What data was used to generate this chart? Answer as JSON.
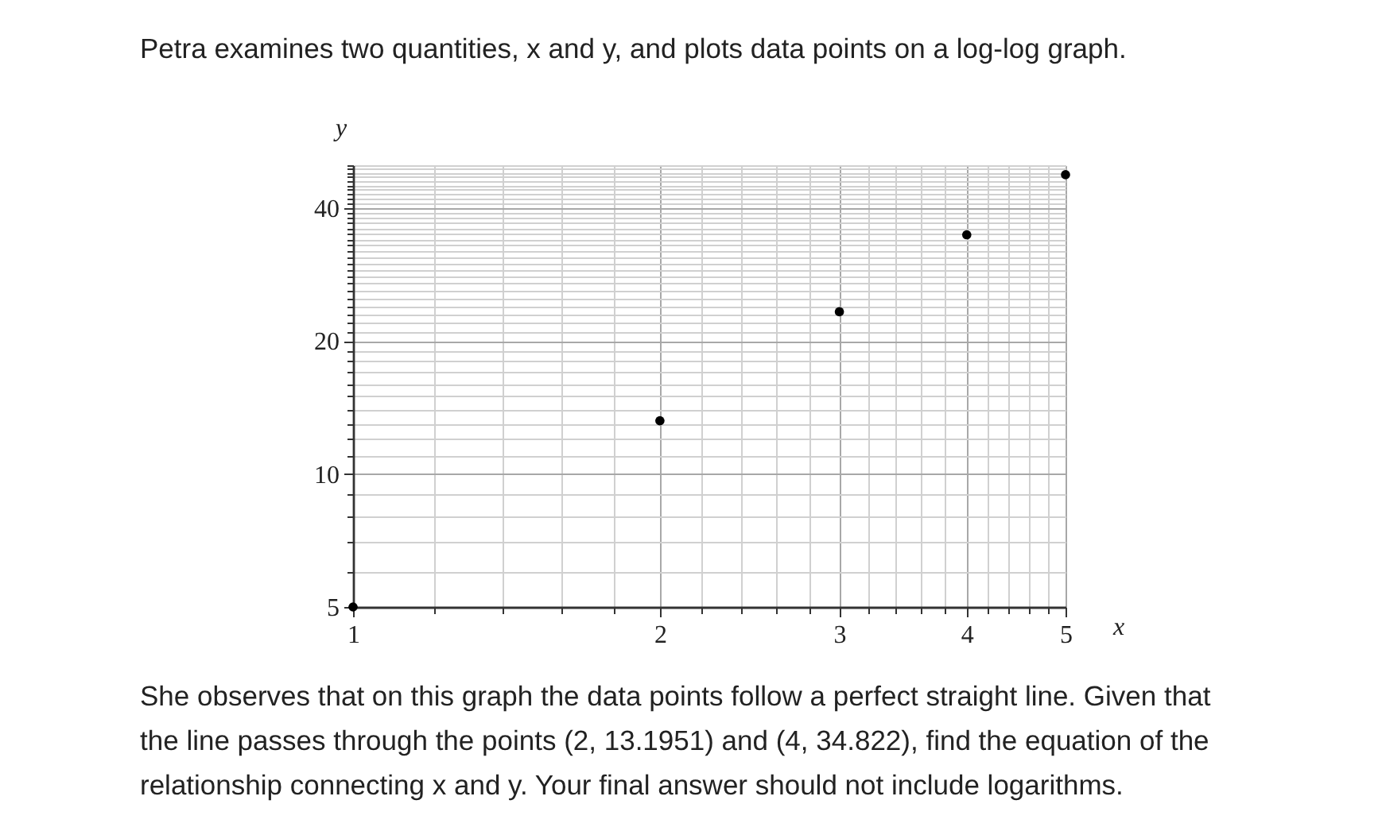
{
  "chart_data": {
    "type": "scatter",
    "title": "Petra examines two quantities, x and y, and plots data points on a log-log graph.",
    "xlabel": "x",
    "ylabel": "y",
    "x": [
      1,
      2,
      3,
      4,
      5
    ],
    "values": [
      5,
      13.2,
      23.3,
      34.8,
      47.6
    ],
    "color": "#000000",
    "marker": "circle",
    "log": "xy",
    "grid": true,
    "xlim": [
      1,
      5
    ],
    "ylim": [
      5,
      50
    ],
    "xticks": [
      1,
      {
        "value": 1.2,
        "label": null
      },
      {
        "value": 1.4,
        "label": null
      },
      {
        "value": 1.6,
        "label": null
      },
      {
        "value": 1.8,
        "label": null
      },
      2,
      {
        "value": 2.2,
        "label": null
      },
      {
        "value": 2.4,
        "label": null
      },
      {
        "value": 2.6,
        "label": null
      },
      {
        "value": 2.8,
        "label": null
      },
      3,
      {
        "value": 3.2,
        "label": null
      },
      {
        "value": 3.4,
        "label": null
      },
      {
        "value": 3.6,
        "label": null
      },
      {
        "value": 3.8,
        "label": null
      },
      4,
      {
        "value": 4.2,
        "label": null
      },
      {
        "value": 4.4,
        "label": null
      },
      {
        "value": 4.6,
        "label": null
      },
      {
        "value": 4.8,
        "label": null
      },
      5
    ],
    "yticks": [
      5,
      {
        "value": 6,
        "label": null
      },
      {
        "value": 7,
        "label": null
      },
      {
        "value": 8,
        "label": null
      },
      {
        "value": 9,
        "label": null
      },
      10,
      {
        "value": 11,
        "label": null
      },
      {
        "value": 12,
        "label": null
      },
      {
        "value": 13,
        "label": null
      },
      {
        "value": 14,
        "label": null
      },
      {
        "value": 15,
        "label": null
      },
      {
        "value": 16,
        "label": null
      },
      {
        "value": 17,
        "label": null
      },
      {
        "value": 18,
        "label": null
      },
      {
        "value": 19,
        "label": null
      },
      20,
      {
        "value": 21,
        "label": null
      },
      {
        "value": 22,
        "label": null
      },
      {
        "value": 23,
        "label": null
      },
      {
        "value": 24,
        "label": null
      },
      {
        "value": 25,
        "label": null
      },
      {
        "value": 26,
        "label": null
      },
      {
        "value": 27,
        "label": null
      },
      {
        "value": 28,
        "label": null
      },
      {
        "value": 29,
        "label": null
      },
      {
        "value": 30,
        "label": null
      },
      {
        "value": 31,
        "label": null
      },
      {
        "value": 32,
        "label": null
      },
      {
        "value": 33,
        "label": null
      },
      {
        "value": 34,
        "label": null
      },
      {
        "value": 35,
        "label": null
      },
      {
        "value": 36,
        "label": null
      },
      {
        "value": 37,
        "label": null
      },
      {
        "value": 38,
        "label": null
      },
      {
        "value": 39,
        "label": null
      },
      40,
      {
        "value": 41,
        "label": null
      },
      {
        "value": 42,
        "label": null
      },
      {
        "value": 43,
        "label": null
      },
      {
        "value": 44,
        "label": null
      },
      {
        "value": 45,
        "label": null
      },
      {
        "value": 46,
        "label": null
      },
      {
        "value": 47,
        "label": null
      },
      {
        "value": 48,
        "label": null
      },
      {
        "value": 49,
        "label": null
      },
      {
        "value": 50,
        "label": null
      }
    ],
    "annotations": [
      "She observes that on this graph the data points follow a perfect straight line. Given that the line passes through the points (2, 13.1951) and (4, 34.822), find the equation of the relationship connecting x and y. Your final answer should not include logarithms."
    ]
  }
}
